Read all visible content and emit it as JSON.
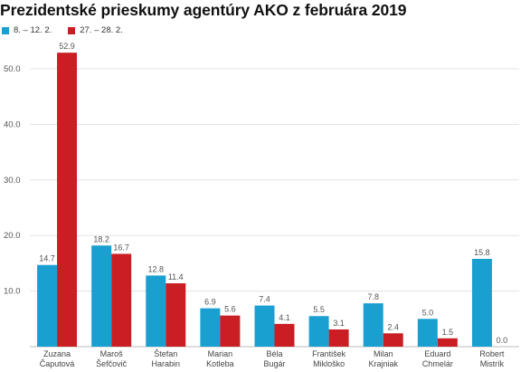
{
  "chart_data": {
    "type": "bar",
    "title": "Prezidentské prieskumy agentúry AKO z februára 2019",
    "categories": [
      [
        "Zuzana",
        "Čaputová"
      ],
      [
        "Maroš",
        "Šefčovič"
      ],
      [
        "Štefan",
        "Harabin"
      ],
      [
        "Marian",
        "Kotleba"
      ],
      [
        "Béla",
        "Bugár"
      ],
      [
        "František",
        "Mikloško"
      ],
      [
        "Milan",
        "Krajniak"
      ],
      [
        "Eduard",
        "Chmelár"
      ],
      [
        "Robert",
        "Mistrík"
      ]
    ],
    "series": [
      {
        "name": "8. – 12. 2.",
        "color": "#1a9fd1",
        "values": [
          14.7,
          18.2,
          12.8,
          6.9,
          7.4,
          5.5,
          7.8,
          5.0,
          15.8
        ],
        "labels": [
          "14.7",
          "18.2",
          "12.8",
          "6.9",
          "7.4",
          "5.5",
          "7.8",
          "5.0",
          "15.8"
        ]
      },
      {
        "name": "27. – 28. 2.",
        "color": "#c91f24",
        "values": [
          52.9,
          16.7,
          11.4,
          5.6,
          4.1,
          3.1,
          2.4,
          1.5,
          0.0
        ],
        "labels": [
          "52.9",
          "16.7",
          "11.4",
          "5.6",
          "4.1",
          "3.1",
          "2.4",
          "1.5",
          "0.0"
        ]
      }
    ],
    "ylim": [
      0,
      60
    ],
    "yticks": [
      10,
      20,
      30,
      40,
      50
    ],
    "ytick_labels": [
      "10.0",
      "20.0",
      "30.0",
      "40.0",
      "50.0"
    ],
    "grid": true,
    "legend_position": "top-left",
    "xlabel": "",
    "ylabel": ""
  }
}
